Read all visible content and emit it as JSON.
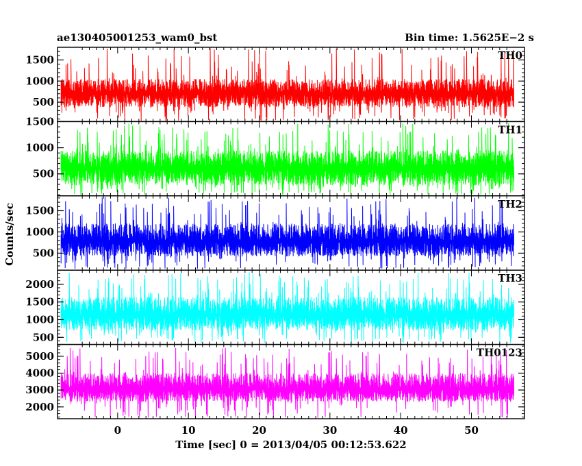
{
  "chart_data": {
    "type": "line",
    "title": "ae130405001253_wam0_bst",
    "subtitle": "Bin time: 1.5625E−2 s",
    "xlabel": "Time [sec] 0 = 2013/04/05 00:12:53.622",
    "ylabel": "Counts/sec",
    "xlim": [
      -8.5,
      57.5
    ],
    "data_xrange": [
      -8,
      56
    ],
    "x_ticks": [
      0,
      10,
      20,
      30,
      40,
      50
    ],
    "x_tick_labels": [
      "0",
      "10",
      "20",
      "30",
      "40",
      "50"
    ],
    "grid": false,
    "panels": [
      {
        "name": "TH0",
        "color": "#ff0000",
        "ylim": [
          40,
          1800
        ],
        "y_ticks": [
          500,
          1000,
          1500
        ],
        "y_tick_labels": [
          "500",
          "1000",
          "1500"
        ],
        "band_low": 380,
        "band_high": 1050,
        "mean": 720,
        "spike_max": 1780,
        "dip_min": 50
      },
      {
        "name": "TH1",
        "color": "#00ff00",
        "ylim": [
          80,
          1500
        ],
        "y_ticks": [
          500,
          1000,
          1500
        ],
        "y_tick_labels": [
          "500",
          "1000",
          "1500"
        ],
        "band_low": 280,
        "band_high": 950,
        "mean": 620,
        "spike_max": 1470,
        "dip_min": 100
      },
      {
        "name": "TH2",
        "color": "#0000ff",
        "ylim": [
          100,
          1850
        ],
        "y_ticks": [
          500,
          1000,
          1500
        ],
        "y_tick_labels": [
          "500",
          "1000",
          "1500"
        ],
        "band_low": 420,
        "band_high": 1200,
        "mean": 800,
        "spike_max": 1830,
        "dip_min": 130
      },
      {
        "name": "TH3",
        "color": "#00ffff",
        "ylim": [
          300,
          2400
        ],
        "y_ticks": [
          500,
          1000,
          1500,
          2000
        ],
        "y_tick_labels": [
          "500",
          "1000",
          "1500",
          "2000"
        ],
        "band_low": 700,
        "band_high": 1650,
        "mean": 1150,
        "spike_max": 2350,
        "dip_min": 340
      },
      {
        "name": "TH0123",
        "color": "#ff00ff",
        "ylim": [
          1300,
          5700
        ],
        "y_ticks": [
          2000,
          3000,
          4000,
          5000
        ],
        "y_tick_labels": [
          "2000",
          "3000",
          "4000",
          "5000"
        ],
        "band_low": 2300,
        "band_high": 4000,
        "mean": 3100,
        "spike_max": 5500,
        "dip_min": 1350
      }
    ]
  }
}
